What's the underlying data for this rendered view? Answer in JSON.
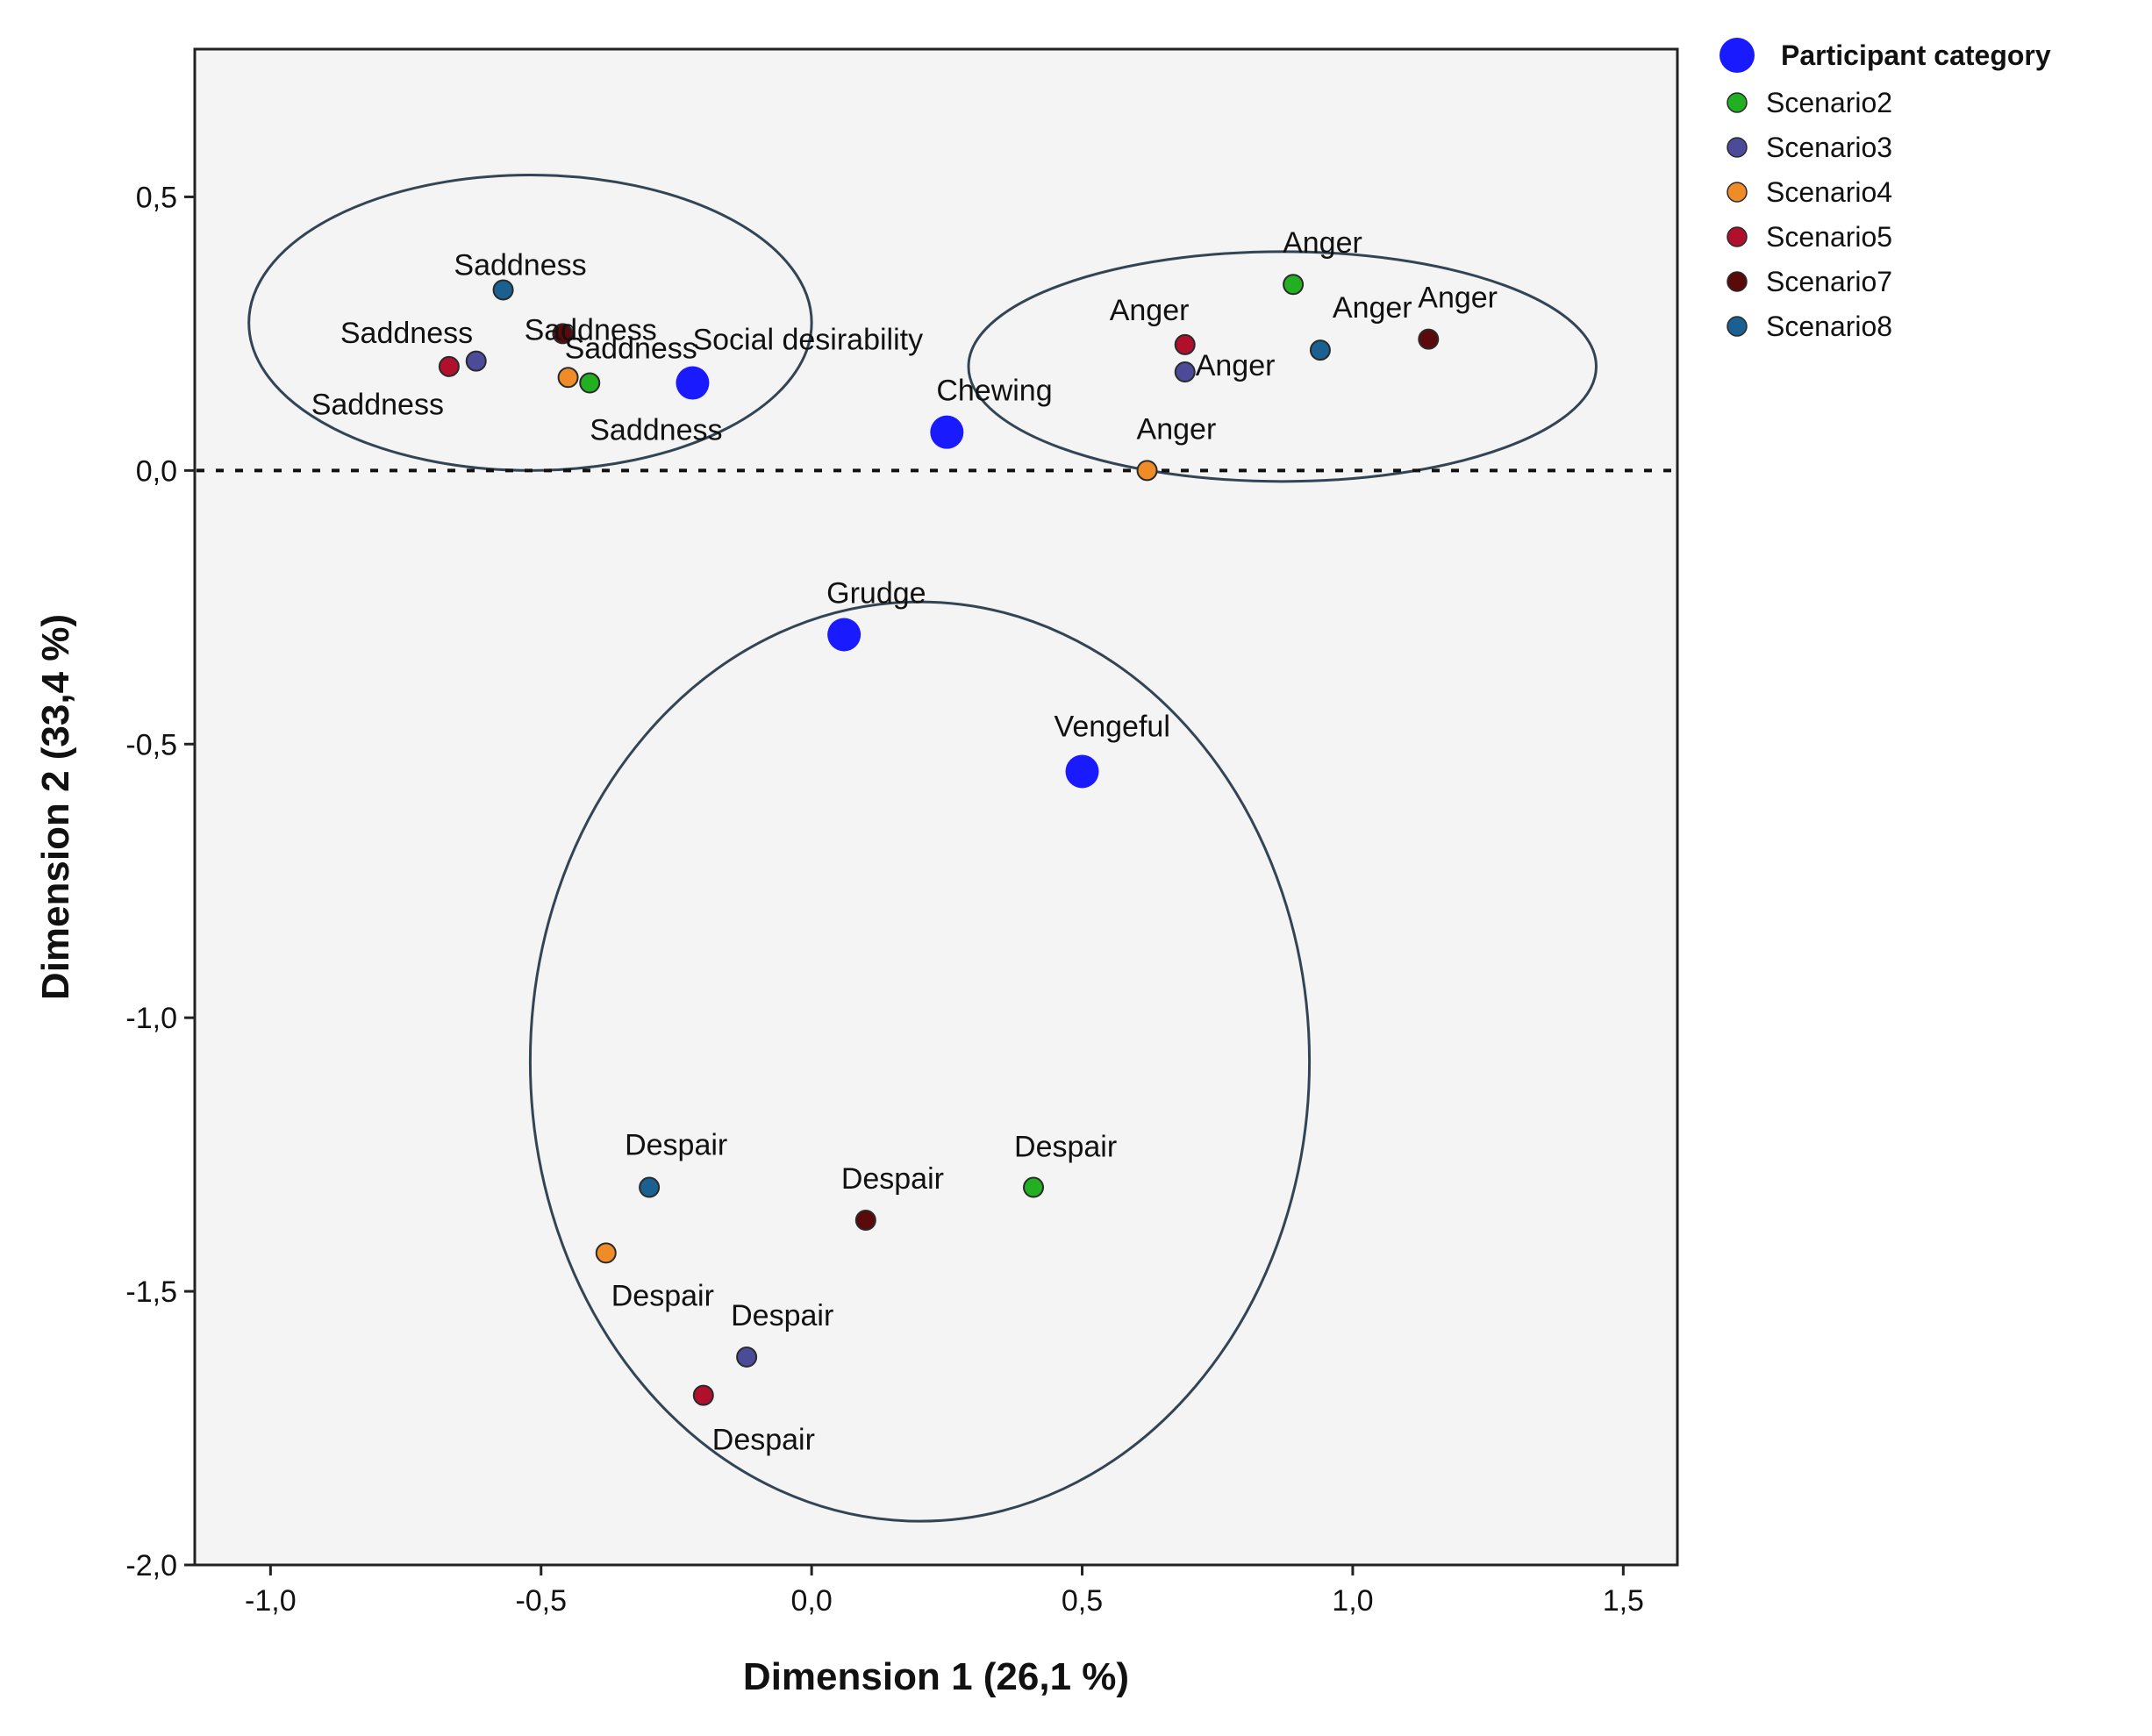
{
  "chart_data": {
    "type": "scatter",
    "title": "",
    "xlabel": "Dimension 1 (26,1 %)",
    "ylabel": "Dimension 2 (33,4 %)",
    "xlim": [
      -1.14,
      1.6
    ],
    "ylim": [
      -2.0,
      0.77
    ],
    "x_ticks": [
      -1.0,
      -0.5,
      0.0,
      0.5,
      1.0,
      1.5
    ],
    "x_tick_labels": [
      "-1,0",
      "-0,5",
      "0,0",
      "0,5",
      "1,0",
      "1,5"
    ],
    "y_ticks": [
      0.5,
      0.0,
      -0.5,
      -1.0,
      -1.5,
      -2.0
    ],
    "y_tick_labels": [
      "0,5",
      "0,0",
      "-0,5",
      "-1,0",
      "-1,5",
      "-2,0"
    ],
    "reference_line_y": 0.0,
    "legend": {
      "position": "top-right, outside plot",
      "title": "Participant category",
      "title_color": "#1a1aff",
      "items": [
        {
          "label": "Scenario2",
          "color": "#22b022"
        },
        {
          "label": "Scenario3",
          "color": "#4b4b9a"
        },
        {
          "label": "Scenario4",
          "color": "#f08c28"
        },
        {
          "label": "Scenario5",
          "color": "#b0102c"
        },
        {
          "label": "Scenario7",
          "color": "#5a0a0a"
        },
        {
          "label": "Scenario8",
          "color": "#1a6090"
        }
      ]
    },
    "series": [
      {
        "name": "Participant category",
        "color": "#1a1aff",
        "points": [
          {
            "label": "Social desirability",
            "x": -0.22,
            "y": 0.16
          },
          {
            "label": "Chewing",
            "x": 0.25,
            "y": 0.07
          },
          {
            "label": "Grudge",
            "x": 0.06,
            "y": -0.3
          },
          {
            "label": "Vengeful",
            "x": 0.5,
            "y": -0.55
          }
        ]
      },
      {
        "name": "Scenario2",
        "color": "#22b022",
        "points": [
          {
            "label": "Saddness",
            "x": -0.41,
            "y": 0.16
          },
          {
            "label": "Anger",
            "x": 0.89,
            "y": 0.34
          },
          {
            "label": "Despair",
            "x": 0.41,
            "y": -1.31
          }
        ]
      },
      {
        "name": "Scenario3",
        "color": "#4b4b9a",
        "points": [
          {
            "label": "",
            "x": -0.62,
            "y": 0.2
          },
          {
            "label": "",
            "x": 0.69,
            "y": 0.18
          },
          {
            "label": "Despair",
            "x": -0.12,
            "y": -1.62
          }
        ]
      },
      {
        "name": "Scenario4",
        "color": "#f08c28",
        "points": [
          {
            "label": "",
            "x": -0.45,
            "y": 0.17
          },
          {
            "label": "Anger",
            "x": 0.62,
            "y": 0.0
          },
          {
            "label": "Despair",
            "x": -0.38,
            "y": -1.43
          }
        ]
      },
      {
        "name": "Scenario5",
        "color": "#b0102c",
        "points": [
          {
            "label": "Saddness",
            "x": -0.67,
            "y": 0.19
          },
          {
            "label": "Anger",
            "x": 0.69,
            "y": 0.23
          },
          {
            "label": "Despair",
            "x": -0.2,
            "y": -1.69
          }
        ]
      },
      {
        "name": "Scenario7",
        "color": "#5a0a0a",
        "points": [
          {
            "label": "Saddness",
            "x": -0.46,
            "y": 0.25
          },
          {
            "label": "Anger",
            "x": 1.14,
            "y": 0.24
          },
          {
            "label": "Despair",
            "x": 0.1,
            "y": -1.37
          }
        ]
      },
      {
        "name": "Scenario8",
        "color": "#1a6090",
        "points": [
          {
            "label": "Saddness",
            "x": -0.57,
            "y": 0.33
          },
          {
            "label": "Anger",
            "x": 0.94,
            "y": 0.22
          },
          {
            "label": "Despair",
            "x": -0.3,
            "y": -1.31
          }
        ]
      }
    ],
    "extra_labels": [
      {
        "text": "Saddness",
        "anchor_series": "Scenario3",
        "anchor_index": 0
      },
      {
        "text": "Saddness",
        "anchor_series": "Scenario4",
        "anchor_index": 0
      },
      {
        "text": "Anger",
        "anchor_series": "Scenario3",
        "anchor_index": 1
      }
    ],
    "cluster_ellipses": [
      {
        "name": "saddness-cluster",
        "cx": -0.52,
        "cy": 0.27,
        "rx": 0.52,
        "ry": 0.27
      },
      {
        "name": "anger-cluster",
        "cx": 0.87,
        "cy": 0.19,
        "rx": 0.58,
        "ry": 0.21
      },
      {
        "name": "despair-cluster",
        "cx": 0.2,
        "cy": -1.08,
        "rx": 0.72,
        "ry": 0.84
      }
    ]
  }
}
